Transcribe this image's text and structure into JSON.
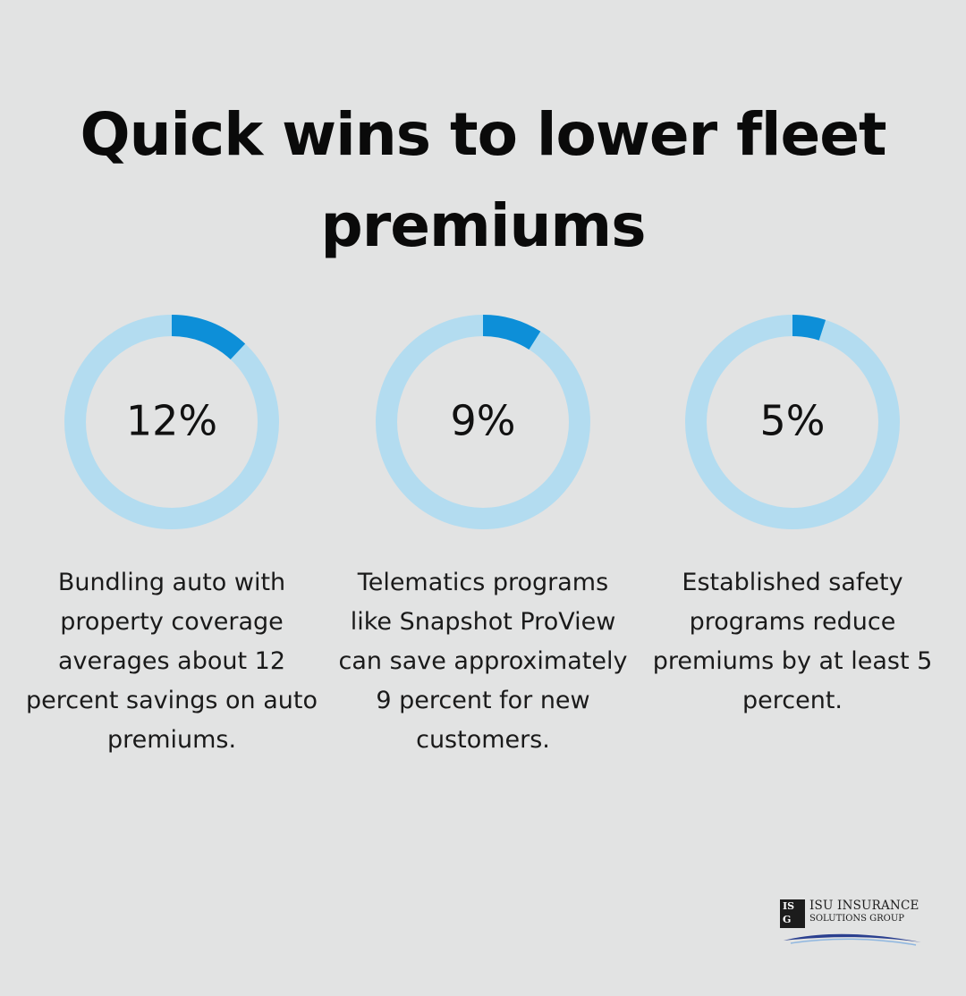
{
  "title": "Quick wins to lower fleet premiums",
  "colors": {
    "background": "#e2e3e3",
    "ring_track": "#b3dcf0",
    "ring_fill": "#0d8fd8",
    "text": "#111111"
  },
  "chart_data": [
    {
      "type": "pie",
      "style": "donut",
      "value": 12,
      "label": "12%",
      "description": "Bundling auto with property coverage averages about 12 percent savings on auto premiums."
    },
    {
      "type": "pie",
      "style": "donut",
      "value": 9,
      "label": "9%",
      "description": "Telematics programs like Snapshot ProView can save approximately 9 percent for new customers."
    },
    {
      "type": "pie",
      "style": "donut",
      "value": 5,
      "label": "5%",
      "description": "Established safety programs reduce premiums by at least 5 percent."
    }
  ],
  "logo": {
    "mark_icon": "isg-logo-mark-icon",
    "text_line1": "ISU INSURANCE",
    "text_line2": "SOLUTIONS GROUP"
  }
}
